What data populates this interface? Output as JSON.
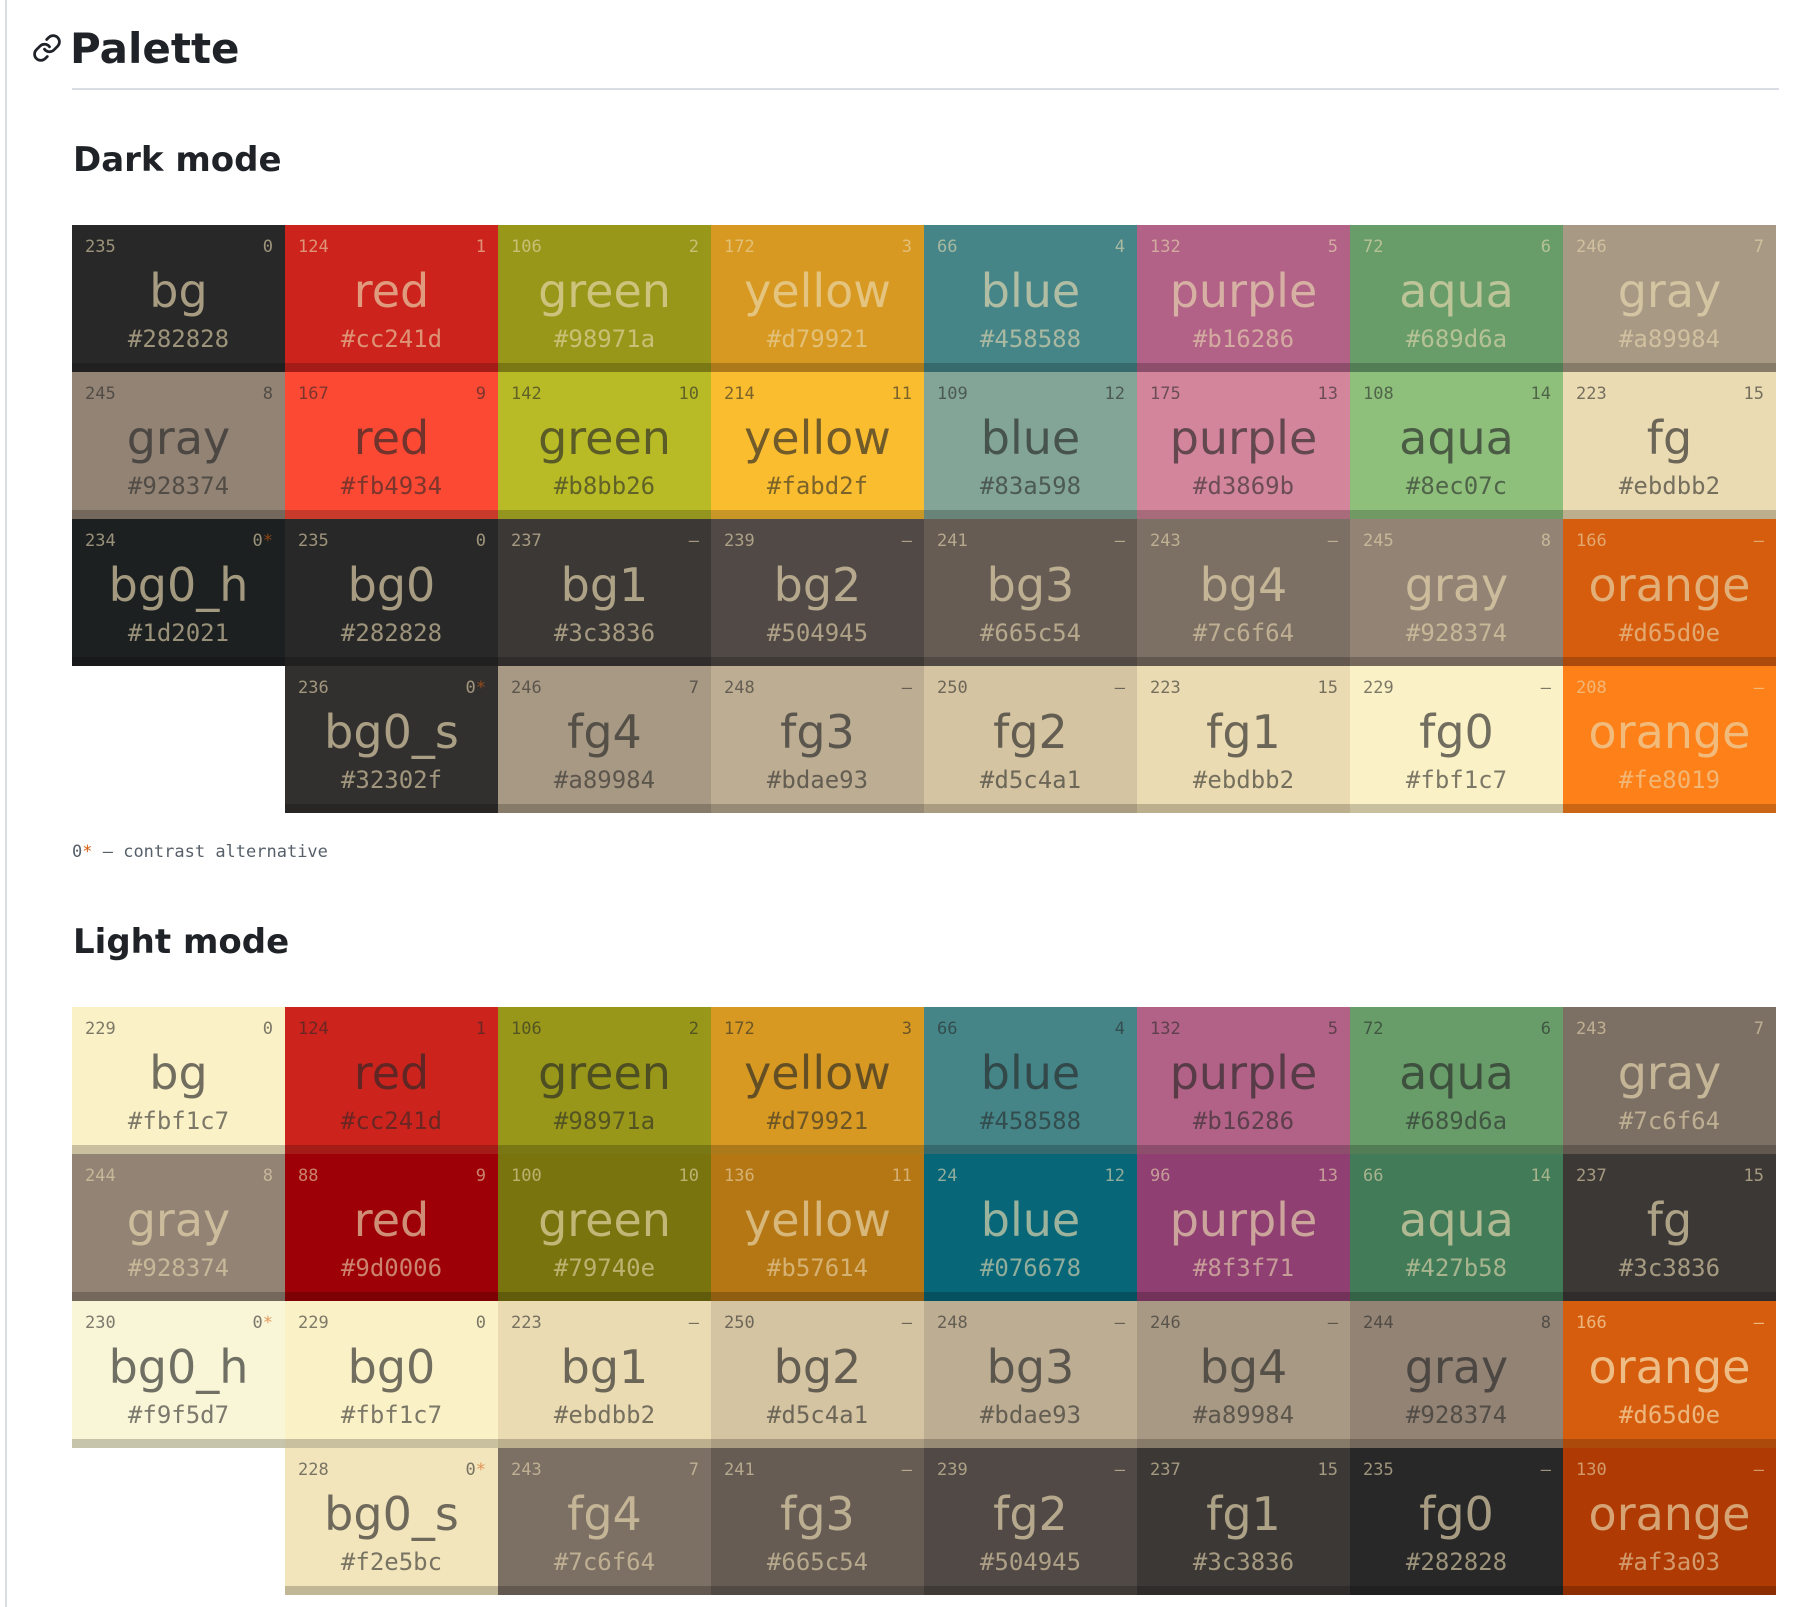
{
  "page": {
    "title": "Palette",
    "link_icon": "link-icon"
  },
  "footnote": {
    "marker": "0",
    "star": "*",
    "text": " — contrast alternative"
  },
  "sections": [
    {
      "id": "dark",
      "title": "Dark mode",
      "rows": [
        [
          {
            "code": "235",
            "index": "0",
            "star": "",
            "name": "bg",
            "hex": "#282828",
            "bg": "#282828",
            "fg": "#ebdbb2"
          },
          {
            "code": "124",
            "index": "1",
            "star": "",
            "name": "red",
            "hex": "#cc241d",
            "bg": "#cc241d",
            "fg": "#ebdbb2"
          },
          {
            "code": "106",
            "index": "2",
            "star": "",
            "name": "green",
            "hex": "#98971a",
            "bg": "#98971a",
            "fg": "#ebdbb2"
          },
          {
            "code": "172",
            "index": "3",
            "star": "",
            "name": "yellow",
            "hex": "#d79921",
            "bg": "#d79921",
            "fg": "#ebdbb2"
          },
          {
            "code": "66",
            "index": "4",
            "star": "",
            "name": "blue",
            "hex": "#458588",
            "bg": "#458588",
            "fg": "#ebdbb2"
          },
          {
            "code": "132",
            "index": "5",
            "star": "",
            "name": "purple",
            "hex": "#b16286",
            "bg": "#b16286",
            "fg": "#ebdbb2"
          },
          {
            "code": "72",
            "index": "6",
            "star": "",
            "name": "aqua",
            "hex": "#689d6a",
            "bg": "#689d6a",
            "fg": "#ebdbb2"
          },
          {
            "code": "246",
            "index": "7",
            "star": "",
            "name": "gray",
            "hex": "#a89984",
            "bg": "#a89984",
            "fg": "#ebdbb2"
          }
        ],
        [
          {
            "code": "245",
            "index": "8",
            "star": "",
            "name": "gray",
            "hex": "#928374",
            "bg": "#928374",
            "fg": "#282828"
          },
          {
            "code": "167",
            "index": "9",
            "star": "",
            "name": "red",
            "hex": "#fb4934",
            "bg": "#fb4934",
            "fg": "#282828"
          },
          {
            "code": "142",
            "index": "10",
            "star": "",
            "name": "green",
            "hex": "#b8bb26",
            "bg": "#b8bb26",
            "fg": "#282828"
          },
          {
            "code": "214",
            "index": "11",
            "star": "",
            "name": "yellow",
            "hex": "#fabd2f",
            "bg": "#fabd2f",
            "fg": "#282828"
          },
          {
            "code": "109",
            "index": "12",
            "star": "",
            "name": "blue",
            "hex": "#83a598",
            "bg": "#83a598",
            "fg": "#282828"
          },
          {
            "code": "175",
            "index": "13",
            "star": "",
            "name": "purple",
            "hex": "#d3869b",
            "bg": "#d3869b",
            "fg": "#282828"
          },
          {
            "code": "108",
            "index": "14",
            "star": "",
            "name": "aqua",
            "hex": "#8ec07c",
            "bg": "#8ec07c",
            "fg": "#282828"
          },
          {
            "code": "223",
            "index": "15",
            "star": "",
            "name": "fg",
            "hex": "#ebdbb2",
            "bg": "#ebdbb2",
            "fg": "#282828"
          }
        ],
        [
          {
            "code": "234",
            "index": "0",
            "star": "*",
            "name": "bg0_h",
            "hex": "#1d2021",
            "bg": "#1d2021",
            "fg": "#ebdbb2"
          },
          {
            "code": "235",
            "index": "0",
            "star": "",
            "name": "bg0",
            "hex": "#282828",
            "bg": "#282828",
            "fg": "#ebdbb2"
          },
          {
            "code": "237",
            "index": "–",
            "star": "",
            "name": "bg1",
            "hex": "#3c3836",
            "bg": "#3c3836",
            "fg": "#ebdbb2"
          },
          {
            "code": "239",
            "index": "–",
            "star": "",
            "name": "bg2",
            "hex": "#504945",
            "bg": "#504945",
            "fg": "#ebdbb2"
          },
          {
            "code": "241",
            "index": "–",
            "star": "",
            "name": "bg3",
            "hex": "#665c54",
            "bg": "#665c54",
            "fg": "#ebdbb2"
          },
          {
            "code": "243",
            "index": "–",
            "star": "",
            "name": "bg4",
            "hex": "#7c6f64",
            "bg": "#7c6f64",
            "fg": "#ebdbb2"
          },
          {
            "code": "245",
            "index": "8",
            "star": "",
            "name": "gray",
            "hex": "#928374",
            "bg": "#928374",
            "fg": "#ebdbb2"
          },
          {
            "code": "166",
            "index": "–",
            "star": "",
            "name": "orange",
            "hex": "#d65d0e",
            "bg": "#d65d0e",
            "fg": "#ebdbb2"
          }
        ],
        [
          null,
          {
            "code": "236",
            "index": "0",
            "star": "*",
            "name": "bg0_s",
            "hex": "#32302f",
            "bg": "#32302f",
            "fg": "#ebdbb2"
          },
          {
            "code": "246",
            "index": "7",
            "star": "",
            "name": "fg4",
            "hex": "#a89984",
            "bg": "#a89984",
            "fg": "#282828"
          },
          {
            "code": "248",
            "index": "–",
            "star": "",
            "name": "fg3",
            "hex": "#bdae93",
            "bg": "#bdae93",
            "fg": "#282828"
          },
          {
            "code": "250",
            "index": "–",
            "star": "",
            "name": "fg2",
            "hex": "#d5c4a1",
            "bg": "#d5c4a1",
            "fg": "#282828"
          },
          {
            "code": "223",
            "index": "15",
            "star": "",
            "name": "fg1",
            "hex": "#ebdbb2",
            "bg": "#ebdbb2",
            "fg": "#282828"
          },
          {
            "code": "229",
            "index": "–",
            "star": "",
            "name": "fg0",
            "hex": "#fbf1c7",
            "bg": "#fbf1c7",
            "fg": "#282828"
          },
          {
            "code": "208",
            "index": "–",
            "star": "",
            "name": "orange",
            "hex": "#fe8019",
            "bg": "#fe8019",
            "fg": "#ebdbb2"
          }
        ]
      ]
    },
    {
      "id": "light",
      "title": "Light mode",
      "rows": [
        [
          {
            "code": "229",
            "index": "0",
            "star": "",
            "name": "bg",
            "hex": "#fbf1c7",
            "bg": "#fbf1c7",
            "fg": "#282828"
          },
          {
            "code": "124",
            "index": "1",
            "star": "",
            "name": "red",
            "hex": "#cc241d",
            "bg": "#cc241d",
            "fg": "#282828"
          },
          {
            "code": "106",
            "index": "2",
            "star": "",
            "name": "green",
            "hex": "#98971a",
            "bg": "#98971a",
            "fg": "#282828"
          },
          {
            "code": "172",
            "index": "3",
            "star": "",
            "name": "yellow",
            "hex": "#d79921",
            "bg": "#d79921",
            "fg": "#282828"
          },
          {
            "code": "66",
            "index": "4",
            "star": "",
            "name": "blue",
            "hex": "#458588",
            "bg": "#458588",
            "fg": "#282828"
          },
          {
            "code": "132",
            "index": "5",
            "star": "",
            "name": "purple",
            "hex": "#b16286",
            "bg": "#b16286",
            "fg": "#282828"
          },
          {
            "code": "72",
            "index": "6",
            "star": "",
            "name": "aqua",
            "hex": "#689d6a",
            "bg": "#689d6a",
            "fg": "#282828"
          },
          {
            "code": "243",
            "index": "7",
            "star": "",
            "name": "gray",
            "hex": "#7c6f64",
            "bg": "#7c6f64",
            "fg": "#ebdbb2"
          }
        ],
        [
          {
            "code": "244",
            "index": "8",
            "star": "",
            "name": "gray",
            "hex": "#928374",
            "bg": "#928374",
            "fg": "#ebdbb2"
          },
          {
            "code": "88",
            "index": "9",
            "star": "",
            "name": "red",
            "hex": "#9d0006",
            "bg": "#9d0006",
            "fg": "#ebdbb2"
          },
          {
            "code": "100",
            "index": "10",
            "star": "",
            "name": "green",
            "hex": "#79740e",
            "bg": "#79740e",
            "fg": "#ebdbb2"
          },
          {
            "code": "136",
            "index": "11",
            "star": "",
            "name": "yellow",
            "hex": "#b57614",
            "bg": "#b57614",
            "fg": "#ebdbb2"
          },
          {
            "code": "24",
            "index": "12",
            "star": "",
            "name": "blue",
            "hex": "#076678",
            "bg": "#076678",
            "fg": "#ebdbb2"
          },
          {
            "code": "96",
            "index": "13",
            "star": "",
            "name": "purple",
            "hex": "#8f3f71",
            "bg": "#8f3f71",
            "fg": "#ebdbb2"
          },
          {
            "code": "66",
            "index": "14",
            "star": "",
            "name": "aqua",
            "hex": "#427b58",
            "bg": "#427b58",
            "fg": "#ebdbb2"
          },
          {
            "code": "237",
            "index": "15",
            "star": "",
            "name": "fg",
            "hex": "#3c3836",
            "bg": "#3c3836",
            "fg": "#ebdbb2"
          }
        ],
        [
          {
            "code": "230",
            "index": "0",
            "star": "*",
            "name": "bg0_h",
            "hex": "#f9f5d7",
            "bg": "#f9f5d7",
            "fg": "#282828"
          },
          {
            "code": "229",
            "index": "0",
            "star": "",
            "name": "bg0",
            "hex": "#fbf1c7",
            "bg": "#fbf1c7",
            "fg": "#282828"
          },
          {
            "code": "223",
            "index": "–",
            "star": "",
            "name": "bg1",
            "hex": "#ebdbb2",
            "bg": "#ebdbb2",
            "fg": "#282828"
          },
          {
            "code": "250",
            "index": "–",
            "star": "",
            "name": "bg2",
            "hex": "#d5c4a1",
            "bg": "#d5c4a1",
            "fg": "#282828"
          },
          {
            "code": "248",
            "index": "–",
            "star": "",
            "name": "bg3",
            "hex": "#bdae93",
            "bg": "#bdae93",
            "fg": "#282828"
          },
          {
            "code": "246",
            "index": "–",
            "star": "",
            "name": "bg4",
            "hex": "#a89984",
            "bg": "#a89984",
            "fg": "#282828"
          },
          {
            "code": "244",
            "index": "8",
            "star": "",
            "name": "gray",
            "hex": "#928374",
            "bg": "#928374",
            "fg": "#282828"
          },
          {
            "code": "166",
            "index": "–",
            "star": "",
            "name": "orange",
            "hex": "#d65d0e",
            "bg": "#d65d0e",
            "fg": "#fbf1c7"
          }
        ],
        [
          null,
          {
            "code": "228",
            "index": "0",
            "star": "*",
            "name": "bg0_s",
            "hex": "#f2e5bc",
            "bg": "#f2e5bc",
            "fg": "#282828"
          },
          {
            "code": "243",
            "index": "7",
            "star": "",
            "name": "fg4",
            "hex": "#7c6f64",
            "bg": "#7c6f64",
            "fg": "#ebdbb2"
          },
          {
            "code": "241",
            "index": "–",
            "star": "",
            "name": "fg3",
            "hex": "#665c54",
            "bg": "#665c54",
            "fg": "#ebdbb2"
          },
          {
            "code": "239",
            "index": "–",
            "star": "",
            "name": "fg2",
            "hex": "#504945",
            "bg": "#504945",
            "fg": "#ebdbb2"
          },
          {
            "code": "237",
            "index": "15",
            "star": "",
            "name": "fg1",
            "hex": "#3c3836",
            "bg": "#3c3836",
            "fg": "#ebdbb2"
          },
          {
            "code": "235",
            "index": "–",
            "star": "",
            "name": "fg0",
            "hex": "#282828",
            "bg": "#282828",
            "fg": "#ebdbb2"
          },
          {
            "code": "130",
            "index": "–",
            "star": "",
            "name": "orange",
            "hex": "#af3a03",
            "bg": "#af3a03",
            "fg": "#ebdbb2"
          }
        ]
      ]
    }
  ]
}
